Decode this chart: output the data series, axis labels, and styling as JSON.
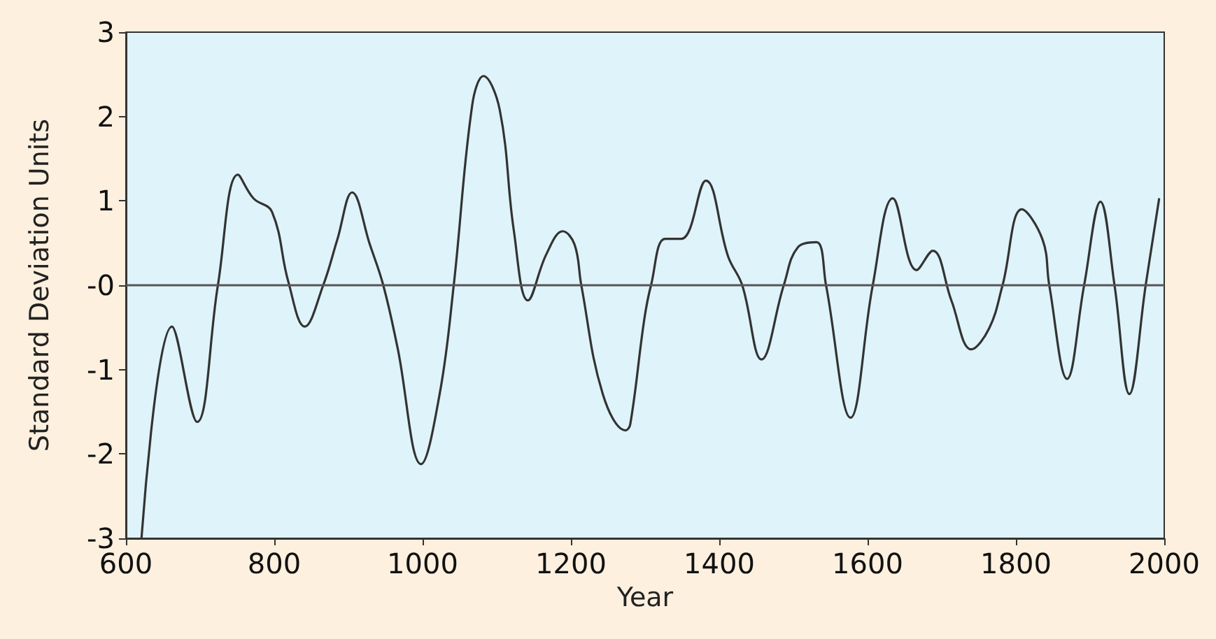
{
  "chart_data": {
    "type": "line",
    "xlabel": "Year",
    "ylabel": "Standard Deviation Units",
    "xlim": [
      600,
      2000
    ],
    "xticks": [
      600,
      800,
      1000,
      1200,
      1400,
      1600,
      1800,
      2000
    ],
    "ylim": [
      -3,
      3
    ],
    "yticks": [
      -3,
      -2,
      -1,
      {
        "value": 0,
        "label": "-0"
      },
      1,
      2,
      3
    ],
    "grid": false,
    "marker": "none",
    "line_style": "solid",
    "ref_lines": [
      {
        "axis": "y",
        "value": 0,
        "color": "#555555"
      }
    ],
    "series": [
      {
        "color": "#333333",
        "x": [
          621,
          662,
          696,
          724,
          751,
          772,
          797,
          819,
          841,
          866,
          885,
          905,
          929,
          947,
          966,
          998,
          1023,
          1042,
          1067,
          1082,
          1104,
          1123,
          1142,
          1167,
          1189,
          1205,
          1214,
          1243,
          1274,
          1280,
          1299,
          1308,
          1327,
          1349,
          1382,
          1412,
          1431,
          1457,
          1487,
          1506,
          1531,
          1544,
          1577,
          1607,
          1634,
          1666,
          1688,
          1713,
          1740,
          1764,
          1782,
          1808,
          1836,
          1845,
          1869,
          1892,
          1914,
          1933,
          1953,
          1975,
          1993
        ],
        "values": [
          -3.0,
          -0.49,
          -1.62,
          0,
          1.31,
          1.03,
          0.87,
          0.04,
          -0.49,
          0,
          0.54,
          1.1,
          0.48,
          0,
          -0.73,
          -2.12,
          -1.29,
          0,
          2.14,
          2.48,
          2.08,
          0.65,
          -0.18,
          0.37,
          0.64,
          0.48,
          0,
          -1.29,
          -1.72,
          -1.65,
          -0.4,
          0,
          0.55,
          0.55,
          1.24,
          0.34,
          0,
          -0.88,
          0,
          0.45,
          0.51,
          0,
          -1.57,
          0,
          1.03,
          0.18,
          0.41,
          -0.18,
          -0.76,
          -0.51,
          0,
          0.9,
          0.54,
          0,
          -1.11,
          0,
          0.99,
          0,
          -1.29,
          0,
          1.02
        ]
      }
    ]
  }
}
